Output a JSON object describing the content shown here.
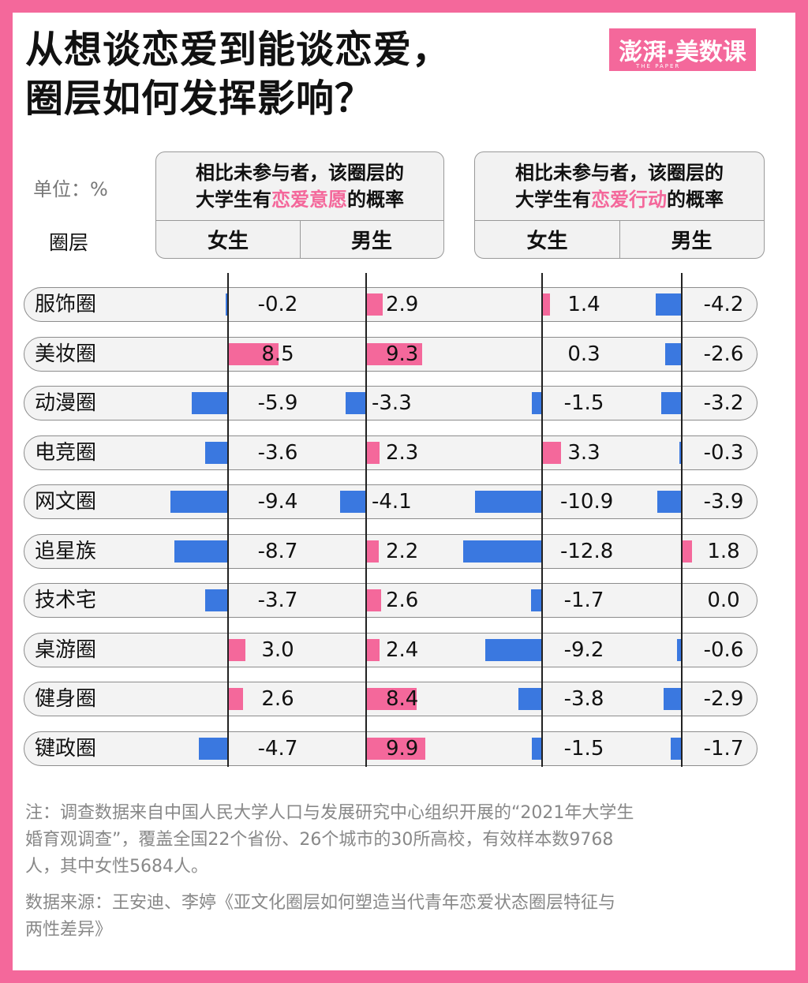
{
  "title_line1": "从想谈恋爱到能谈恋爱，",
  "title_line2": "圈层如何发挥影响？",
  "logo_text": "澎湃·美数课",
  "logo_sub": "THE PAPER",
  "unit_label": "单位：%",
  "layer_header": "圈层",
  "group1": {
    "line1": "相比未参与者，该圈层的",
    "line2_pre": "大学生有",
    "line2_hl": "恋爱意愿",
    "line2_post": "的概率",
    "female": "女生",
    "male": "男生"
  },
  "group2": {
    "line1": "相比未参与者，该圈层的",
    "line2_pre": "大学生有",
    "line2_hl": "恋爱行动",
    "line2_post": "的概率",
    "female": "女生",
    "male": "男生"
  },
  "colors": {
    "positive": "#f4689b",
    "negative": "#3a78e0",
    "brand": "#f4689b"
  },
  "chart_data": {
    "type": "bar",
    "categories": [
      "服饰圈",
      "美妆圈",
      "动漫圈",
      "电竞圈",
      "网文圈",
      "追星族",
      "技术宅",
      "桌游圈",
      "健身圈",
      "键政圈"
    ],
    "series": [
      {
        "name": "恋爱意愿-女生",
        "values": [
          -0.2,
          8.5,
          -5.9,
          -3.6,
          -9.4,
          -8.7,
          -3.7,
          3.0,
          2.6,
          -4.7
        ],
        "labels": [
          "-0.2",
          "8.5",
          "-5.9",
          "-3.6",
          "-9.4",
          "-8.7",
          "-3.7",
          "3.0",
          "2.6",
          "-4.7"
        ]
      },
      {
        "name": "恋爱意愿-男生",
        "values": [
          2.9,
          9.3,
          -3.3,
          2.3,
          -4.1,
          2.2,
          2.6,
          2.4,
          8.4,
          9.9
        ],
        "labels": [
          "2.9",
          "9.3",
          "-3.3",
          "2.3",
          "-4.1",
          "2.2",
          "2.6",
          "2.4",
          "8.4",
          "9.9"
        ]
      },
      {
        "name": "恋爱行动-女生",
        "values": [
          1.4,
          0.3,
          -1.5,
          3.3,
          -10.9,
          -12.8,
          -1.7,
          -9.2,
          -3.8,
          -1.5
        ],
        "labels": [
          "1.4",
          "0.3",
          "-1.5",
          "3.3",
          "-10.9",
          "-12.8",
          "-1.7",
          "-9.2",
          "-3.8",
          "-1.5"
        ]
      },
      {
        "name": "恋爱行动-男生",
        "values": [
          -4.2,
          -2.6,
          -3.2,
          -0.3,
          -3.9,
          1.8,
          0.0,
          -0.6,
          -2.9,
          -1.7
        ],
        "labels": [
          "-4.2",
          "-2.6",
          "-3.2",
          "-0.3",
          "-3.9",
          "1.8",
          "0.0",
          "-0.6",
          "-2.9",
          "-1.7"
        ]
      }
    ]
  },
  "note_lines": [
    "注：调查数据来自中国人民大学人口与发展研究中心组织开展的“2021年大学生",
    "婚育观调查”，覆盖全国22个省份、26个城市的30所高校，有效样本数9768",
    "人，其中女性5684人。"
  ],
  "source_lines": [
    "数据来源：王安迪、李婷《亚文化圈层如何塑造当代青年恋爱状态圈层特征与",
    "两性差异》"
  ]
}
